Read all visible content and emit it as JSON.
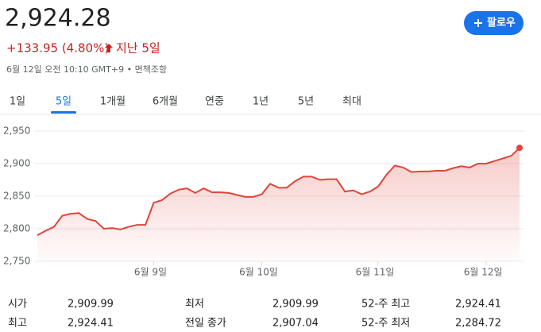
{
  "header": {
    "price": "2,924.28",
    "change": "+133.95 (4.80%)",
    "period": "지난 5일",
    "timestamp": "6월 12일 오전 10:10 GMT+9 • 면책조항",
    "follow_button": "팔로우"
  },
  "tabs": {
    "items": [
      "1일",
      "5일",
      "1개월",
      "6개월",
      "연중",
      "1년",
      "5년",
      "최대"
    ],
    "selected": 1
  },
  "chart_data": {
    "type": "line",
    "color": "#e0453a",
    "grid": true,
    "categories": [
      null,
      null,
      null,
      null,
      null,
      null,
      null,
      null,
      null,
      null,
      null,
      null,
      null,
      null,
      "6월 9일",
      null,
      null,
      null,
      null,
      null,
      null,
      null,
      null,
      null,
      null,
      null,
      null,
      "6월 10일",
      null,
      null,
      null,
      null,
      null,
      null,
      null,
      null,
      null,
      null,
      null,
      null,
      null,
      "6월 11일",
      null,
      null,
      null,
      null,
      null,
      null,
      null,
      null,
      null,
      null,
      null,
      null,
      "6월 12일",
      null,
      null,
      null,
      null
    ],
    "values": [
      2790,
      2797,
      2803,
      2820,
      2823,
      2824,
      2815,
      2812,
      2800,
      2801,
      2799,
      2803,
      2806,
      2806,
      2840,
      2844,
      2854,
      2860,
      2862,
      2855,
      2862,
      2856,
      2856,
      2855,
      2852,
      2849,
      2849,
      2853,
      2869,
      2863,
      2863,
      2873,
      2880,
      2880,
      2875,
      2876,
      2876,
      2857,
      2859,
      2853,
      2857,
      2865,
      2883,
      2897,
      2894,
      2887,
      2888,
      2888,
      2889,
      2889,
      2893,
      2896,
      2894,
      2900,
      2900,
      2904,
      2908,
      2912,
      2924.28
    ],
    "ylim": [
      2750,
      2950
    ],
    "yticks": [
      {
        "value": 2750,
        "label": "2,750"
      },
      {
        "value": 2800,
        "label": "2,800"
      },
      {
        "value": 2850,
        "label": "2,850"
      },
      {
        "value": 2900,
        "label": "2,900"
      },
      {
        "value": 2950,
        "label": "2,950"
      }
    ]
  },
  "stats": {
    "rows": [
      [
        "시가",
        "2,909.99",
        "최저",
        "2,909.99",
        "52-주 최고",
        "2,924.41"
      ],
      [
        "최고",
        "2,924.41",
        "전일 종가",
        "2,907.04",
        "52-주 최저",
        "2,284.72"
      ]
    ]
  }
}
